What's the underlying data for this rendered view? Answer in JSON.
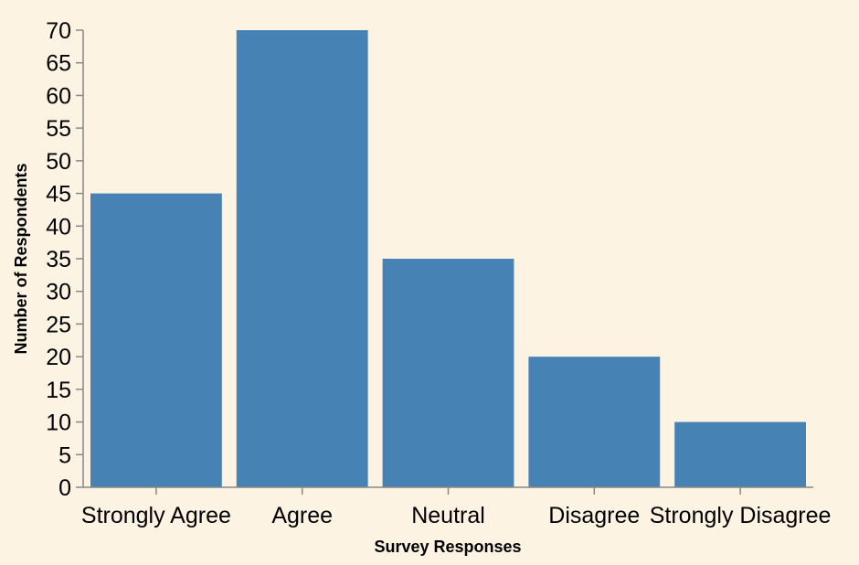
{
  "chart_data": {
    "type": "bar",
    "categories": [
      "Strongly Agree",
      "Agree",
      "Neutral",
      "Disagree",
      "Strongly Disagree"
    ],
    "values": [
      45,
      70,
      35,
      20,
      10
    ],
    "xlabel": "Survey Responses",
    "ylabel": "Number of Respondents",
    "ylim": [
      0,
      70
    ],
    "yticks": [
      0,
      5,
      10,
      15,
      20,
      25,
      30,
      35,
      40,
      45,
      50,
      55,
      60,
      65,
      70
    ],
    "grid": false,
    "colors": {
      "bar": "#4682b4",
      "axis": "#888888",
      "background": "#fdf3e3"
    }
  }
}
